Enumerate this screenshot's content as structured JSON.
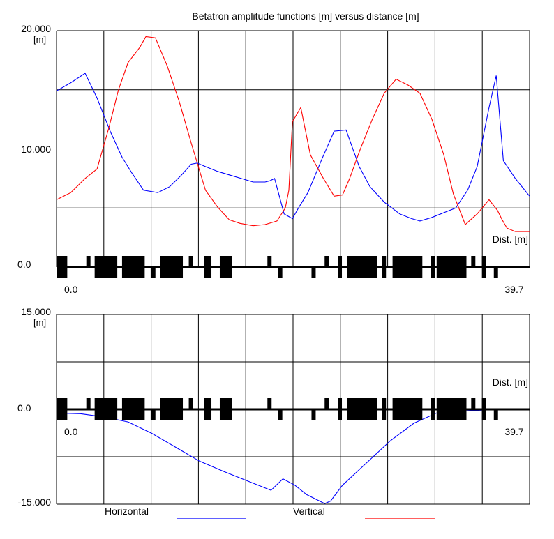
{
  "chart_data": [
    {
      "type": "line",
      "title": "Betatron amplitude functions [m] versus distance [m]",
      "y_max_label": "20.000",
      "y_unit_label": "[m]",
      "y_mid_label": "10.000",
      "y_min_label": "0.0",
      "x_start_label": "0.0",
      "x_end_label": "39.7",
      "x_axis_label": "Dist. [m]",
      "ylim": [
        0,
        20
      ],
      "xlim": [
        0,
        39.7
      ],
      "grid": true,
      "series": [
        {
          "name": "Horizontal",
          "color": "#0000ff",
          "x": [
            0,
            1.2,
            2.4,
            3.4,
            4.5,
            5.5,
            6.3,
            7.3,
            8.5,
            9.5,
            10.5,
            11.3,
            11.8,
            12.5,
            13.5,
            14.5,
            15.5,
            16.5,
            17.5,
            17.9,
            18.3,
            19.1,
            19.8,
            20.3,
            21.1,
            22.3,
            23.3,
            24.3,
            25.4,
            26.3,
            27.5,
            28.8,
            29.8,
            30.5,
            31.5,
            32.5,
            33.5,
            34.5,
            35.3,
            35.8,
            36.3,
            36.9,
            37.5,
            38.5,
            39.7
          ],
          "y": [
            14.9,
            15.6,
            16.4,
            14.3,
            11.5,
            9.3,
            8.0,
            6.5,
            6.3,
            6.8,
            7.8,
            8.7,
            8.8,
            8.5,
            8.1,
            7.8,
            7.5,
            7.2,
            7.2,
            7.3,
            7.5,
            4.5,
            4.1,
            5.0,
            6.3,
            9.2,
            11.5,
            11.6,
            8.5,
            6.8,
            5.5,
            4.5,
            4.1,
            3.9,
            4.2,
            4.6,
            5.0,
            6.5,
            8.5,
            11.0,
            13.5,
            16.2,
            9.0,
            7.5,
            6.0
          ]
        },
        {
          "name": "Vertical",
          "color": "#ff0000",
          "x": [
            0,
            1.2,
            2.4,
            3.4,
            4.4,
            5.2,
            6.0,
            7.0,
            7.5,
            8.3,
            9.3,
            10.3,
            11.3,
            12.5,
            13.5,
            14.5,
            15.4,
            16.5,
            17.5,
            18.5,
            19.2,
            19.5,
            19.8,
            20.5,
            21.3,
            22.4,
            23.3,
            24.0,
            24.6,
            25.5,
            26.5,
            27.5,
            28.5,
            29.5,
            30.5,
            31.5,
            32.5,
            33.3,
            34.3,
            35.3,
            36.3,
            37.0,
            37.4,
            37.8,
            38.5,
            39.2,
            39.7
          ],
          "y": [
            5.7,
            6.3,
            7.5,
            8.3,
            11.8,
            15.0,
            17.3,
            18.6,
            19.5,
            19.4,
            17.0,
            14.0,
            10.5,
            6.5,
            5.1,
            4.0,
            3.7,
            3.5,
            3.6,
            3.9,
            5.0,
            6.5,
            12.3,
            13.5,
            9.5,
            7.5,
            6.0,
            6.1,
            7.5,
            10.0,
            12.5,
            14.7,
            15.9,
            15.4,
            14.7,
            12.5,
            9.5,
            6.2,
            3.6,
            4.5,
            5.7,
            4.8,
            4.0,
            3.3,
            3.0,
            3.0,
            3.0
          ]
        }
      ]
    },
    {
      "type": "line",
      "y_max_label": "15.000",
      "y_unit_label": "[m]",
      "y_zero_label": "0.0",
      "y_min_label": "-15.000",
      "x_start_label": "0.0",
      "x_end_label": "39.7",
      "x_axis_label": "Dist. [m]",
      "ylim": [
        -15,
        15
      ],
      "xlim": [
        0,
        39.7
      ],
      "grid": true,
      "series": [
        {
          "name": "Horizontal",
          "color": "#0000ff",
          "x": [
            0,
            2.0,
            4.0,
            6.0,
            8.0,
            10.0,
            12.0,
            14.0,
            16.0,
            18.0,
            19.0,
            20.0,
            21.0,
            22.5,
            23.0,
            24.0,
            26.0,
            28.0,
            30.0,
            32.0,
            34.0,
            36.0,
            37.0,
            38.0,
            39.7
          ],
          "y": [
            -0.6,
            -0.7,
            -1.2,
            -2.0,
            -3.8,
            -6.0,
            -8.2,
            -9.8,
            -11.3,
            -12.8,
            -11.0,
            -12.0,
            -13.5,
            -14.9,
            -14.5,
            -12.0,
            -8.5,
            -5.0,
            -2.2,
            -0.5,
            -0.3,
            -0.1,
            -0.05,
            0,
            0
          ]
        },
        {
          "name": "Vertical",
          "color": "#ff0000",
          "x": [
            0,
            39.7
          ],
          "y": [
            0,
            0
          ]
        }
      ]
    }
  ],
  "lattice": {
    "elements": [
      {
        "s": 0.0,
        "l": 0.9,
        "dir": "both"
      },
      {
        "s": 2.5,
        "l": 0.35,
        "dir": "up"
      },
      {
        "s": 3.2,
        "l": 1.9,
        "dir": "both"
      },
      {
        "s": 5.5,
        "l": 1.9,
        "dir": "both"
      },
      {
        "s": 7.9,
        "l": 0.4,
        "dir": "down"
      },
      {
        "s": 8.7,
        "l": 1.9,
        "dir": "both"
      },
      {
        "s": 11.1,
        "l": 0.35,
        "dir": "up"
      },
      {
        "s": 12.4,
        "l": 0.6,
        "dir": "both"
      },
      {
        "s": 13.7,
        "l": 1.0,
        "dir": "both"
      },
      {
        "s": 17.7,
        "l": 0.35,
        "dir": "up"
      },
      {
        "s": 18.6,
        "l": 0.35,
        "dir": "down"
      },
      {
        "s": 21.4,
        "l": 0.35,
        "dir": "down"
      },
      {
        "s": 22.5,
        "l": 0.35,
        "dir": "up"
      },
      {
        "s": 23.6,
        "l": 0.35,
        "dir": "both"
      },
      {
        "s": 24.4,
        "l": 2.5,
        "dir": "both"
      },
      {
        "s": 27.3,
        "l": 0.35,
        "dir": "both"
      },
      {
        "s": 28.2,
        "l": 2.5,
        "dir": "both"
      },
      {
        "s": 31.4,
        "l": 0.35,
        "dir": "both"
      },
      {
        "s": 31.9,
        "l": 2.5,
        "dir": "both"
      },
      {
        "s": 34.8,
        "l": 0.35,
        "dir": "up"
      },
      {
        "s": 35.7,
        "l": 0.35,
        "dir": "both"
      },
      {
        "s": 36.7,
        "l": 0.35,
        "dir": "down"
      }
    ]
  },
  "legend": {
    "horizontal_label": "Horizontal",
    "vertical_label": "Vertical",
    "horizontal_color": "#0000ff",
    "vertical_color": "#ff0000"
  }
}
